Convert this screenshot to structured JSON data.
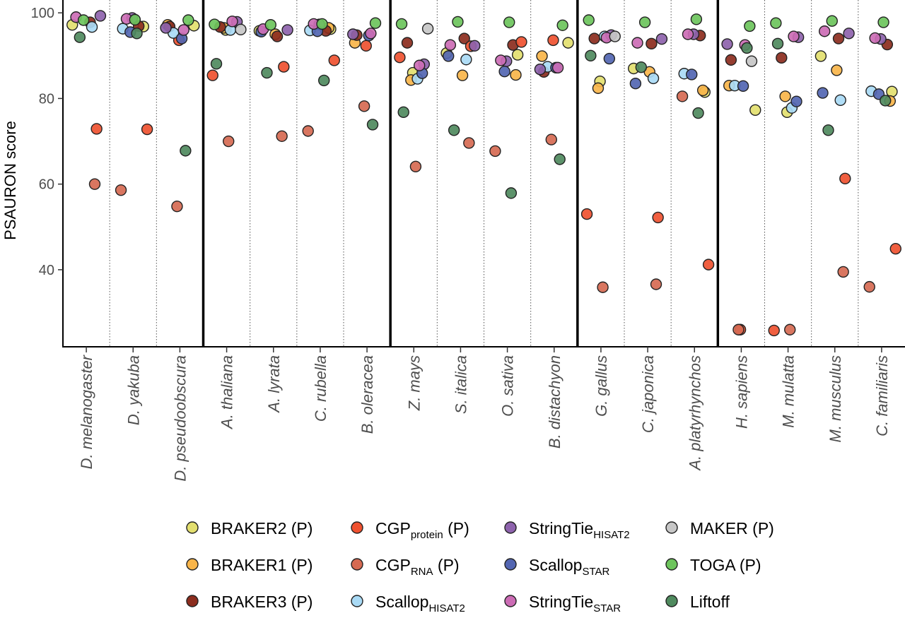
{
  "chart_data": {
    "type": "scatter",
    "title": "",
    "xlabel": "",
    "ylabel": "PSAURON score",
    "ylim": [
      22,
      103
    ],
    "yticks": [
      40,
      60,
      80,
      100
    ],
    "group_breaks_after": [
      "D. pseudoobscura",
      "B. oleracea",
      "B. distachyon",
      "A. platyrhynchos"
    ],
    "categories": [
      "D. melanogaster",
      "D. yakuba",
      "D. pseudoobscura",
      "A. thaliana",
      "A. lyrata",
      "C. rubella",
      "B. oleracea",
      "Z. mays",
      "S. italica",
      "O. sativa",
      "B. distachyon",
      "G. gallus",
      "C. japonica",
      "A. platyrhynchos",
      "H. sapiens",
      "M. mulatta",
      "M. musculus",
      "C. familiaris"
    ],
    "legend_position": "bottom",
    "series": [
      {
        "key": "braker2",
        "name": "BRAKER2 (P)",
        "main": "BRAKER2 (P)",
        "sub": "",
        "suffix": "",
        "color": "#e3df6f",
        "values": [
          97.2,
          96.8,
          97.0,
          96.0,
          95.8,
          96.2,
          null,
          86.0,
          90.6,
          90.2,
          93.0,
          84.0,
          87.0,
          81.5,
          77.3,
          76.8,
          89.9,
          81.6
        ]
      },
      {
        "key": "braker1",
        "name": "BRAKER1 (P)",
        "main": "BRAKER1 (P)",
        "sub": "",
        "suffix": "",
        "color": "#f8b54a",
        "values": [
          null,
          null,
          97.2,
          96.5,
          95.0,
          96.5,
          93.0,
          84.3,
          85.4,
          85.5,
          89.9,
          82.4,
          86.2,
          81.9,
          83.0,
          80.5,
          86.6,
          79.4
        ]
      },
      {
        "key": "braker3",
        "name": "BRAKER3 (P)",
        "main": "BRAKER3 (P)",
        "sub": "",
        "suffix": "",
        "color": "#8c2d1e",
        "values": [
          97.8,
          96.9,
          96.8,
          96.7,
          94.5,
          95.8,
          94.8,
          93.0,
          94.0,
          92.5,
          86.2,
          94.0,
          92.8,
          94.7,
          89.0,
          89.5,
          94.0,
          92.6
        ]
      },
      {
        "key": "cgp_protein",
        "name": "CGP protein (P)",
        "main": "CGP",
        "sub": "protein",
        "suffix": " (P)",
        "color": "#ef5130",
        "values": [
          72.9,
          72.8,
          93.6,
          85.4,
          87.4,
          88.9,
          92.3,
          89.6,
          92.2,
          93.2,
          93.6,
          53.0,
          52.2,
          41.2,
          26.0,
          25.8,
          61.3,
          44.9
        ]
      },
      {
        "key": "cgp_rna",
        "name": "CGP RNA (P)",
        "main": "CGP",
        "sub": "RNA",
        "suffix": " (P)",
        "color": "#d66a52",
        "values": [
          60.0,
          58.6,
          54.8,
          70.0,
          71.2,
          72.4,
          78.2,
          64.1,
          69.6,
          67.7,
          70.4,
          35.9,
          36.6,
          80.5,
          26.0,
          26.0,
          39.5,
          36.0
        ]
      },
      {
        "key": "scallop_hisat2",
        "name": "Scallop HISAT2",
        "main": "Scallop",
        "sub": "HISAT2",
        "suffix": "",
        "color": "#a9daf5",
        "values": [
          96.7,
          96.3,
          95.3,
          96.0,
          null,
          95.9,
          null,
          84.6,
          89.1,
          null,
          87.4,
          94.5,
          84.7,
          85.8,
          83.0,
          77.8,
          79.6,
          81.7
        ]
      },
      {
        "key": "stringtie_hisat2",
        "name": "StringTie HISAT2",
        "main": "StringTie",
        "sub": "HISAT2",
        "suffix": "",
        "color": "#8e63ad",
        "values": [
          99.3,
          98.8,
          96.5,
          97.9,
          96.0,
          97.3,
          95.0,
          88.0,
          92.3,
          88.7,
          86.8,
          94.8,
          93.9,
          95.0,
          92.7,
          94.3,
          95.2,
          93.9
        ]
      },
      {
        "key": "scallop_star",
        "name": "Scallop STAR",
        "main": "Scallop",
        "sub": "STAR",
        "suffix": "",
        "color": "#5366b2",
        "values": [
          null,
          95.5,
          94.0,
          null,
          95.6,
          95.7,
          94.7,
          85.9,
          89.9,
          86.3,
          87.2,
          89.3,
          83.5,
          85.6,
          82.9,
          79.3,
          81.3,
          81.0
        ]
      },
      {
        "key": "stringtie_star",
        "name": "StringTie STAR",
        "main": "StringTie",
        "sub": "STAR",
        "suffix": "",
        "color": "#cc6cb5",
        "values": [
          99.0,
          98.6,
          96.0,
          98.0,
          96.2,
          97.4,
          95.2,
          87.7,
          92.5,
          88.9,
          87.2,
          94.2,
          93.0,
          95.0,
          92.5,
          94.5,
          95.7,
          94.1
        ]
      },
      {
        "key": "maker",
        "name": "MAKER (P)",
        "main": "MAKER (P)",
        "sub": "",
        "suffix": "",
        "color": "#c7c7c7",
        "values": [
          null,
          null,
          null,
          96.1,
          null,
          null,
          null,
          96.3,
          null,
          null,
          null,
          94.5,
          null,
          null,
          88.7,
          null,
          null,
          null
        ]
      },
      {
        "key": "toga",
        "name": "TOGA (P)",
        "main": "TOGA (P)",
        "sub": "",
        "suffix": "",
        "color": "#6dc45c",
        "values": [
          98.3,
          98.4,
          98.3,
          97.3,
          97.2,
          97.4,
          97.6,
          97.4,
          97.9,
          97.8,
          97.1,
          98.3,
          97.8,
          98.5,
          96.9,
          97.6,
          98.1,
          97.8
        ]
      },
      {
        "key": "liftoff",
        "name": "Liftoff",
        "main": "Liftoff",
        "sub": "",
        "suffix": "",
        "color": "#4f8a5e",
        "values": [
          94.3,
          95.2,
          67.8,
          88.1,
          86.0,
          84.2,
          73.9,
          76.8,
          72.6,
          57.9,
          65.8,
          90.0,
          87.3,
          76.6,
          91.8,
          92.8,
          72.6,
          79.5
        ]
      }
    ]
  }
}
